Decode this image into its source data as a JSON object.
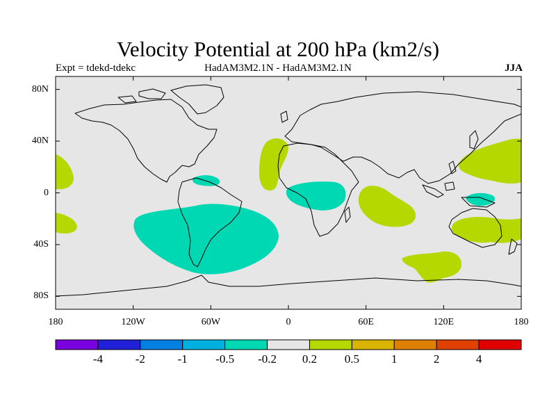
{
  "title": "Velocity Potential at 200 hPa (km2/s)",
  "subtitle_left": "Expt = tdekd-tdekc",
  "subtitle_center": "HadAM3M2.1N - HadAM3M2.1N",
  "subtitle_right": "JJA",
  "map": {
    "land_color": "#e6e6e6",
    "coast_color": "#000000",
    "lat_ticks": [
      {
        "value": 80,
        "label": "80N"
      },
      {
        "value": 40,
        "label": "40N"
      },
      {
        "value": 0,
        "label": "0"
      },
      {
        "value": -40,
        "label": "40S"
      },
      {
        "value": -80,
        "label": "80S"
      }
    ],
    "lon_ticks": [
      {
        "value": -180,
        "label": "180"
      },
      {
        "value": -120,
        "label": "120W"
      },
      {
        "value": -60,
        "label": "60W"
      },
      {
        "value": 0,
        "label": "0"
      },
      {
        "value": 60,
        "label": "60E"
      },
      {
        "value": 120,
        "label": "120E"
      },
      {
        "value": 180,
        "label": "180"
      }
    ]
  },
  "anomalies": [
    {
      "sign": "positive",
      "region": "central-pacific-north",
      "color": "#b4d800"
    },
    {
      "sign": "positive",
      "region": "central-pacific-south",
      "color": "#b4d800"
    },
    {
      "sign": "negative",
      "region": "caribbean",
      "color": "#00d8b4"
    },
    {
      "sign": "negative",
      "region": "south-america",
      "color": "#00d8b4"
    },
    {
      "sign": "positive",
      "region": "west-africa-atlantic",
      "color": "#b4d800"
    },
    {
      "sign": "negative",
      "region": "central-africa",
      "color": "#00d8b4"
    },
    {
      "sign": "positive",
      "region": "indian-ocean",
      "color": "#b4d800"
    },
    {
      "sign": "positive",
      "region": "western-pacific-north",
      "color": "#b4d800"
    },
    {
      "sign": "negative",
      "region": "maritime-continent",
      "color": "#00d8b4"
    },
    {
      "sign": "positive",
      "region": "australia",
      "color": "#b4d800"
    },
    {
      "sign": "positive",
      "region": "southern-ocean",
      "color": "#b4d800"
    }
  ],
  "colorbar": {
    "colors": [
      "#7b00e0",
      "#2020d8",
      "#0080e0",
      "#00b0e0",
      "#00d8b4",
      "#e6e6e6",
      "#b4d800",
      "#d8b400",
      "#e08000",
      "#e04000",
      "#e00000"
    ],
    "labels": [
      "-4",
      "-2",
      "-1",
      "-0.5",
      "-0.2",
      "0.2",
      "0.5",
      "1",
      "2",
      "4"
    ]
  }
}
